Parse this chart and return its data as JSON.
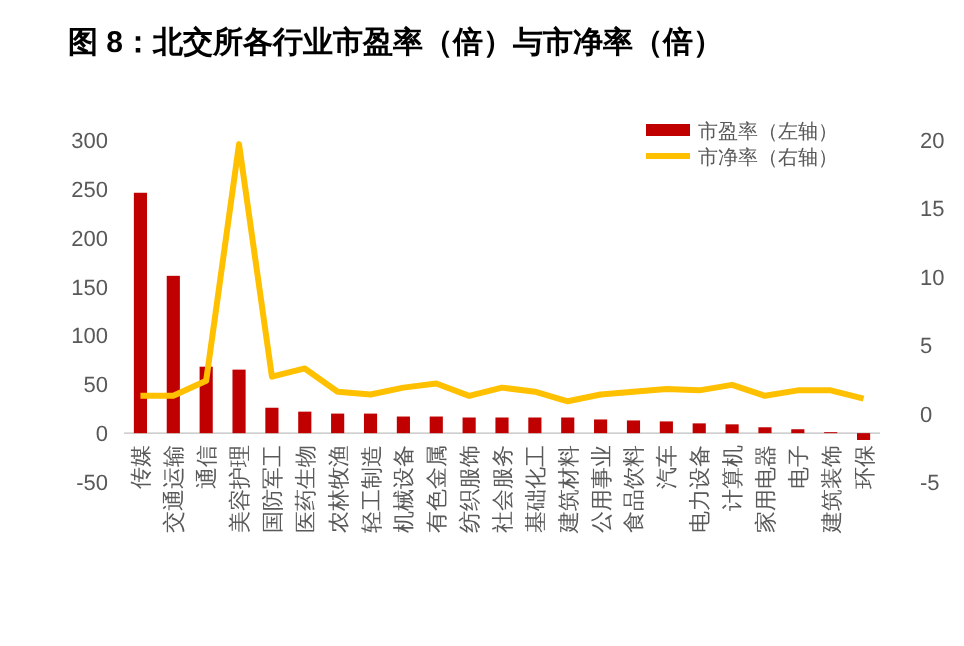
{
  "chart_data": {
    "type": "bar",
    "title": "图 8：北交所各行业市盈率（倍）与市净率（倍）",
    "categories": [
      "传媒",
      "交通运输",
      "通信",
      "美容护理",
      "国防军工",
      "医药生物",
      "农林牧渔",
      "轻工制造",
      "机械设备",
      "有色金属",
      "纺织服饰",
      "社会服务",
      "基础化工",
      "建筑材料",
      "公用事业",
      "食品饮料",
      "汽车",
      "电力设备",
      "计算机",
      "家用电器",
      "电子",
      "建筑装饰",
      "环保"
    ],
    "series": [
      {
        "name": "市盈率（左轴）",
        "color": "#c00000",
        "values": [
          246,
          161,
          68,
          65,
          26,
          22,
          20,
          20,
          17,
          17,
          16,
          16,
          16,
          16,
          14,
          13,
          12,
          10,
          9,
          6,
          4,
          1,
          -7
        ]
      },
      {
        "name": "市净率（右轴）",
        "type": "line",
        "axis": "y2",
        "color": "#ffc000",
        "values": [
          1.3,
          1.3,
          2.4,
          19.7,
          2.7,
          3.3,
          1.6,
          1.4,
          1.9,
          2.2,
          1.3,
          1.9,
          1.6,
          0.9,
          1.4,
          1.6,
          1.8,
          1.7,
          2.1,
          1.3,
          1.7,
          1.7,
          1.1
        ]
      }
    ],
    "ylim": [
      -50,
      300
    ],
    "yticks": [
      -50,
      0,
      50,
      100,
      150,
      200,
      250,
      300
    ],
    "y2lim": [
      -5,
      20
    ],
    "y2ticks": [
      -5,
      0,
      5,
      10,
      15,
      20
    ],
    "legend": "top right",
    "grid": false
  }
}
